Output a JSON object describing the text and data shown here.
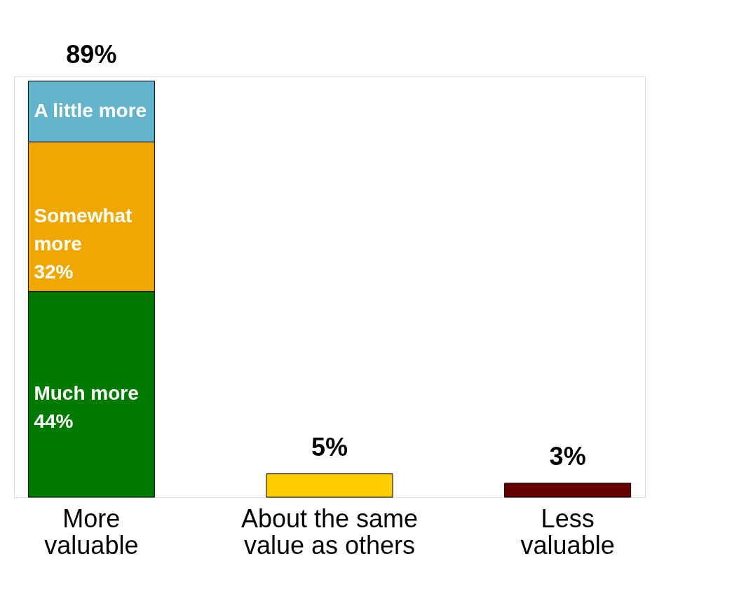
{
  "chart_data": {
    "type": "bar",
    "stacked": true,
    "legend": false,
    "grid": false,
    "tick_labels": "x",
    "categories": [
      "More valuable",
      "About the same value as others",
      "Less valuable"
    ],
    "series": [
      {
        "colors": [
          "#007a00",
          "#ffcc00",
          "#660000"
        ],
        "values": [
          null,
          5,
          3
        ]
      },
      {
        "name": "Much more",
        "color": "#007a00",
        "values": [
          44,
          null,
          null
        ],
        "value_labels": [
          "44%",
          null,
          null
        ]
      },
      {
        "name": "Somewhat more",
        "color": "#f0a800",
        "values": [
          32,
          null,
          null
        ],
        "value_labels": [
          "32%",
          null,
          null
        ]
      },
      {
        "name": "A little more",
        "color": "#62b4cc",
        "values": [
          13,
          null,
          null
        ]
      }
    ],
    "totals": [
      "89%",
      "5%",
      "3%"
    ]
  }
}
